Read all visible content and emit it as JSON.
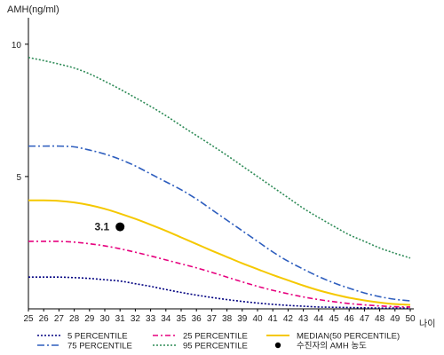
{
  "chart_data": {
    "type": "line",
    "title": "",
    "ylabel": "AMH(ng/ml)",
    "xlabel": "나이",
    "xlim": [
      25,
      50
    ],
    "ylim": [
      0,
      11
    ],
    "xticks": [
      25,
      26,
      27,
      28,
      29,
      30,
      31,
      32,
      33,
      34,
      35,
      36,
      37,
      38,
      39,
      40,
      41,
      42,
      43,
      44,
      45,
      46,
      47,
      48,
      49,
      50
    ],
    "yticks": [
      5,
      10
    ],
    "grid": false,
    "legend_position": "bottom",
    "x": [
      25,
      26,
      27,
      28,
      29,
      30,
      31,
      32,
      33,
      34,
      35,
      36,
      37,
      38,
      39,
      40,
      41,
      42,
      43,
      44,
      45,
      46,
      47,
      48,
      49,
      50
    ],
    "series": [
      {
        "name": "5 PERCENTILE",
        "color": "#000080",
        "dash": "2,2",
        "values": [
          1.2,
          1.2,
          1.2,
          1.18,
          1.15,
          1.1,
          1.05,
          0.95,
          0.85,
          0.73,
          0.62,
          0.52,
          0.43,
          0.35,
          0.28,
          0.22,
          0.17,
          0.13,
          0.1,
          0.07,
          0.06,
          0.05,
          0.04,
          0.03,
          0.03,
          0.03
        ]
      },
      {
        "name": "25 PERCENTILE",
        "color": "#E6007E",
        "dash": "6,3,2,3",
        "values": [
          2.55,
          2.55,
          2.55,
          2.52,
          2.46,
          2.38,
          2.27,
          2.14,
          2.0,
          1.85,
          1.7,
          1.55,
          1.38,
          1.2,
          1.02,
          0.85,
          0.7,
          0.57,
          0.45,
          0.35,
          0.27,
          0.2,
          0.15,
          0.11,
          0.08,
          0.07
        ]
      },
      {
        "name": "MEDIAN(50 PERCENTILE)",
        "color": "#F5C800",
        "dash": "",
        "values": [
          4.1,
          4.1,
          4.08,
          4.02,
          3.92,
          3.78,
          3.6,
          3.4,
          3.18,
          2.95,
          2.7,
          2.45,
          2.2,
          1.96,
          1.72,
          1.5,
          1.28,
          1.08,
          0.88,
          0.7,
          0.55,
          0.42,
          0.32,
          0.24,
          0.18,
          0.15
        ]
      },
      {
        "name": "75 PERCENTILE",
        "color": "#2E5EBE",
        "dash": "8,3,2,3",
        "values": [
          6.15,
          6.15,
          6.15,
          6.12,
          6.0,
          5.85,
          5.65,
          5.4,
          5.1,
          4.8,
          4.5,
          4.15,
          3.75,
          3.35,
          2.95,
          2.55,
          2.15,
          1.8,
          1.5,
          1.22,
          0.98,
          0.78,
          0.6,
          0.46,
          0.36,
          0.3
        ]
      },
      {
        "name": "95 PERCENTILE",
        "color": "#2E8B57",
        "dash": "2,2",
        "values": [
          9.5,
          9.38,
          9.25,
          9.1,
          8.88,
          8.6,
          8.3,
          7.98,
          7.65,
          7.3,
          6.92,
          6.55,
          6.18,
          5.8,
          5.4,
          5.0,
          4.6,
          4.2,
          3.8,
          3.45,
          3.12,
          2.8,
          2.55,
          2.3,
          2.1,
          1.92
        ]
      }
    ],
    "point": {
      "name": "수진자의 AMH 농도",
      "x": 31,
      "y": 3.1,
      "label": "3.1",
      "color": "#000000"
    }
  }
}
